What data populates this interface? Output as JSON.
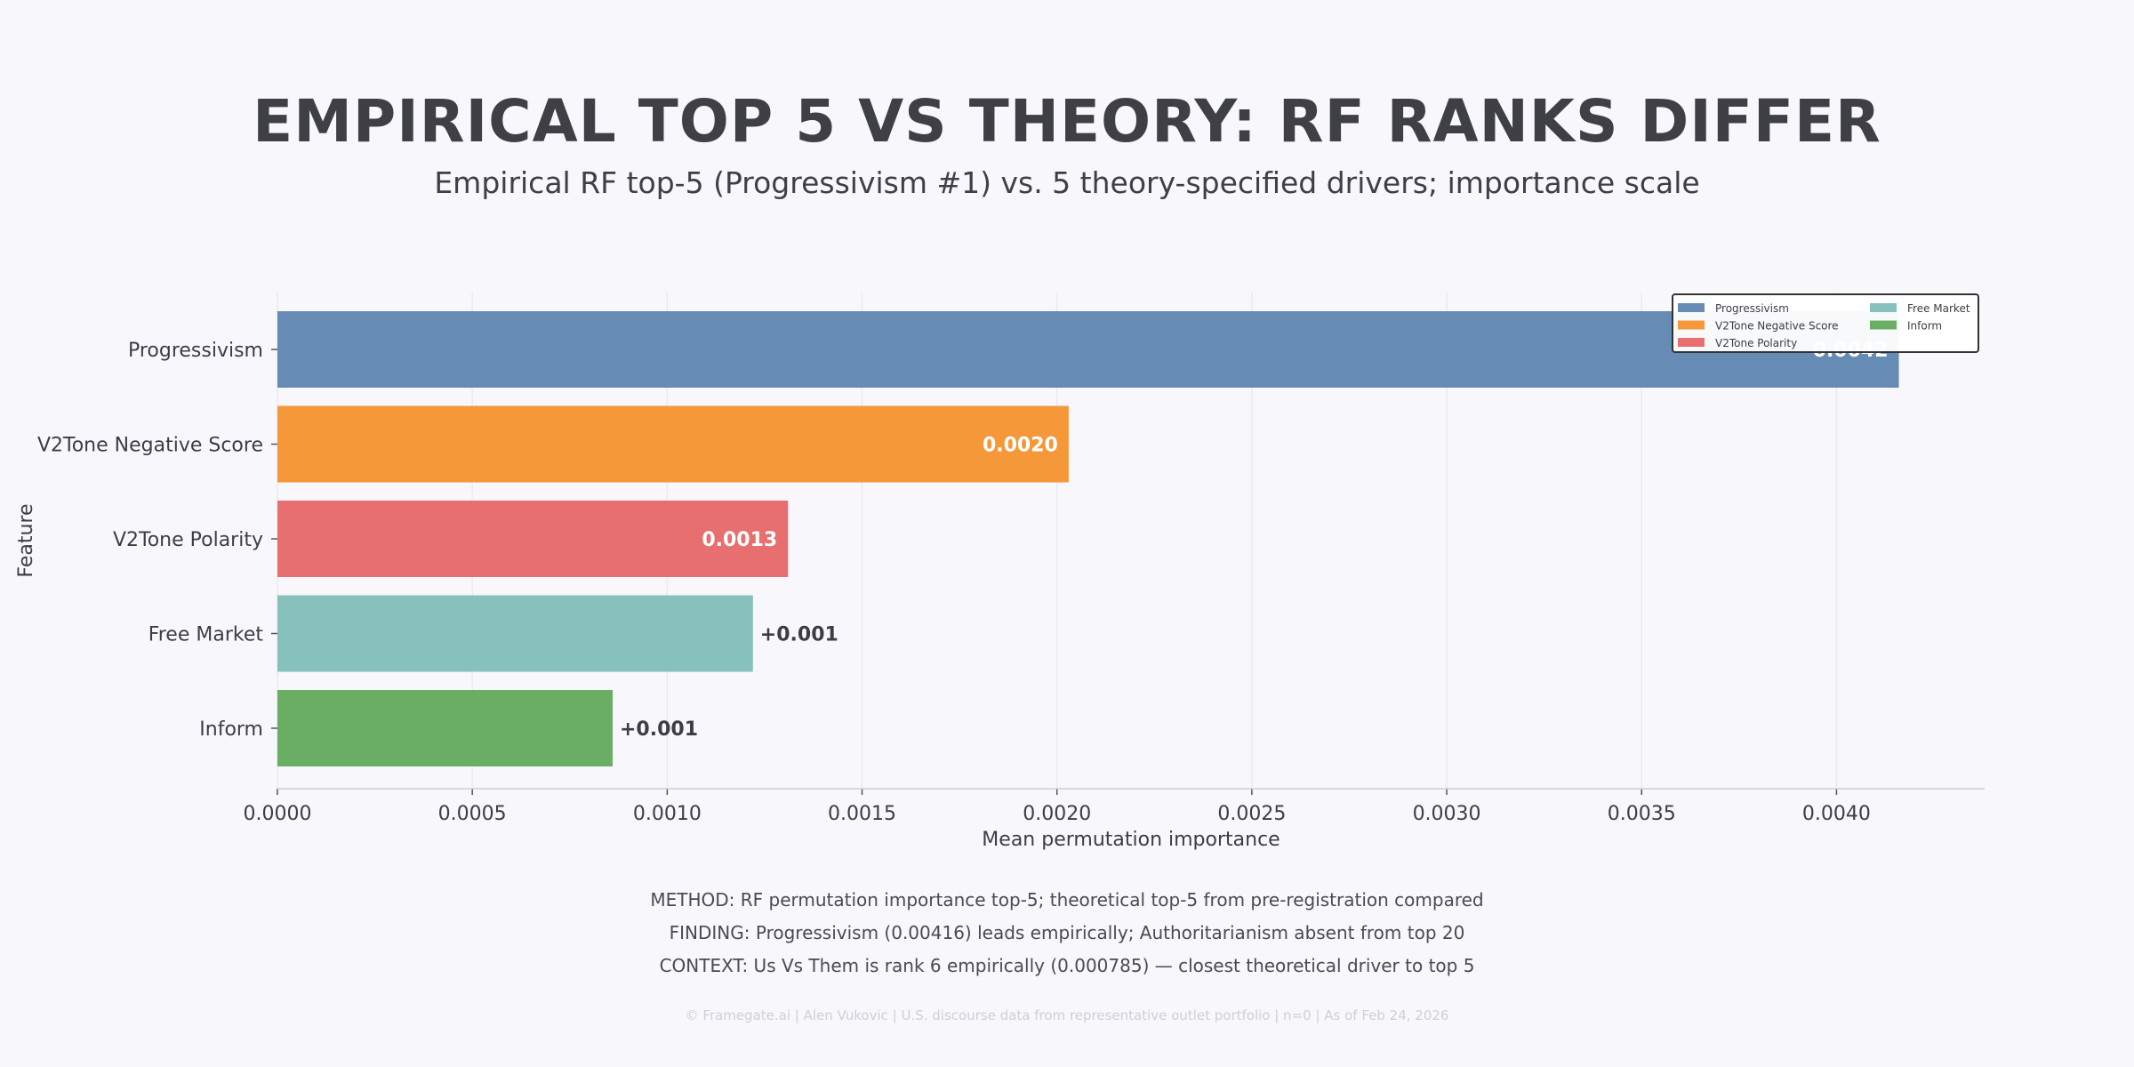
{
  "title": "EMPIRICAL TOP 5 VS THEORY: RF RANKS DIFFER",
  "subtitle": "Empirical RF top-5 (Progressivism #1) vs. 5 theory-specified drivers; importance scale",
  "notes": [
    "METHOD: RF permutation importance top-5; theoretical top-5 from pre-registration compared",
    "FINDING: Progressivism (0.00416) leads empirically; Authoritarianism absent from top 20",
    "CONTEXT: Us Vs Them is rank 6 empirically (0.000785) — closest theoretical driver to top 5"
  ],
  "footer": "© Framegate.ai | Alen Vukovic | U.S. discourse data from representative outlet portfolio | n=0 | As of Feb 24, 2026",
  "chart_data": {
    "type": "bar",
    "orientation": "horizontal",
    "xlabel": "Mean permutation importance",
    "ylabel": "Feature",
    "xlim": [
      0,
      0.00438
    ],
    "xticks": [
      "0.0000",
      "0.0005",
      "0.0010",
      "0.0015",
      "0.0020",
      "0.0025",
      "0.0030",
      "0.0035",
      "0.0040"
    ],
    "grid": true,
    "legend_position": "top-right",
    "categories": [
      "Progressivism",
      "V2Tone Negative Score",
      "V2Tone Polarity",
      "Free Market",
      "Inform"
    ],
    "values": [
      0.00416,
      0.00203,
      0.00131,
      0.00122,
      0.00086
    ],
    "data_labels": [
      "0.0042",
      "0.0020",
      "0.0013",
      "+0.001",
      "+0.001"
    ],
    "colors": [
      "#668bb4",
      "#f5983a",
      "#e76f6f",
      "#87c1bb",
      "#6aae64"
    ]
  }
}
